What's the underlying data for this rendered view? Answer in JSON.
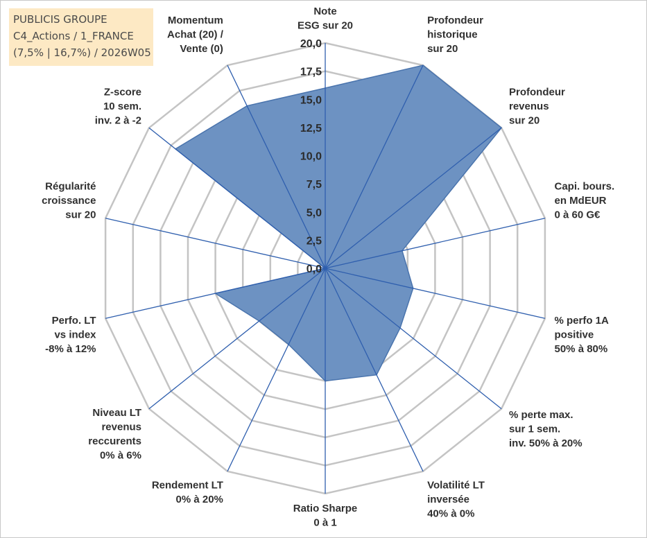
{
  "info": {
    "line1": "PUBLICIS GROUPE",
    "line2": "C4_Actions / 1_FRANCE",
    "line3": "(7,5% | 16,7%) / 2026W05"
  },
  "colors": {
    "fill": "#6d92c2",
    "fill_stroke": "#4a74ad",
    "grid": "#c4c4c4",
    "spoke": "#2f5fae",
    "info_bg": "#fde9c4"
  },
  "chart_data": {
    "type": "radar",
    "ylim": [
      0,
      20
    ],
    "ticks": [
      "0,0",
      "2,5",
      "5,0",
      "7,5",
      "10,0",
      "12,5",
      "15,0",
      "17,5",
      "20,0"
    ],
    "axes": [
      {
        "label": [
          "Note",
          "ESG sur 20"
        ],
        "value": 16.0
      },
      {
        "label": [
          "Profondeur",
          "historique",
          "sur 20"
        ],
        "value": 20.0
      },
      {
        "label": [
          "Profondeur",
          "revenus",
          "sur 20"
        ],
        "value": 20.0
      },
      {
        "label": [
          "Capi. bours.",
          "en MdEUR",
          "0 à 60 G€"
        ],
        "value": 7.0
      },
      {
        "label": [
          "% perfo 1A",
          "positive",
          "50% à 80%"
        ],
        "value": 8.0
      },
      {
        "label": [
          "% perte max.",
          "sur 1 sem.",
          "inv. 50% à 20%"
        ],
        "value": 8.5
      },
      {
        "label": [
          "Volatilité LT",
          "inversée",
          "40% à 0%"
        ],
        "value": 10.5
      },
      {
        "label": [
          "Ratio Sharpe",
          "0 à 1"
        ],
        "value": 10.0
      },
      {
        "label": [
          "Rendement LT",
          "0% à 20%"
        ],
        "value": 7.5
      },
      {
        "label": [
          "Niveau LT",
          "revenus",
          "reccurents",
          "0% à 6%"
        ],
        "value": 7.5
      },
      {
        "label": [
          "Perfo. LT",
          "vs index",
          "-8% à 12%"
        ],
        "value": 10.0
      },
      {
        "label": [
          "Régularité",
          "croissance",
          "sur 20"
        ],
        "value": 0.0
      },
      {
        "label": [
          "Z-score",
          "10 sem.",
          "inv. 2 à -2"
        ],
        "value": 17.0
      },
      {
        "label": [
          "Momentum",
          "Achat (20) /",
          "Vente (0)"
        ],
        "value": 16.0
      }
    ]
  }
}
